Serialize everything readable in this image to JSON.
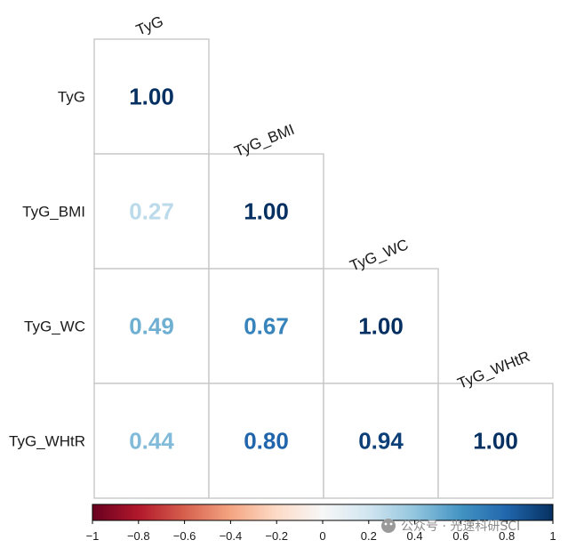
{
  "chart_data": {
    "type": "heatmap",
    "variables": [
      "TyG",
      "TyG_BMI",
      "TyG_WC",
      "TyG_WHtR"
    ],
    "matrix": [
      [
        1.0,
        null,
        null,
        null
      ],
      [
        0.27,
        1.0,
        null,
        null
      ],
      [
        0.49,
        0.67,
        1.0,
        null
      ],
      [
        0.44,
        0.8,
        0.94,
        1.0
      ]
    ],
    "value_labels": [
      [
        "1.00",
        null,
        null,
        null
      ],
      [
        "0.27",
        "1.00",
        null,
        null
      ],
      [
        "0.49",
        "0.67",
        "1.00",
        null
      ],
      [
        "0.44",
        "0.80",
        "0.94",
        "1.00"
      ]
    ],
    "colorbar": {
      "range": [
        -1,
        1
      ],
      "ticks": [
        -1,
        -0.8,
        -0.6,
        -0.4,
        -0.2,
        0,
        0.2,
        0.4,
        0.6,
        0.8,
        1
      ],
      "tick_labels": [
        "−1",
        "−0.8",
        "−0.6",
        "−0.4",
        "−0.2",
        "0",
        "0.2",
        "0.4",
        "0.6",
        "0.8",
        "1"
      ],
      "colors": [
        "#67001f",
        "#b2182b",
        "#d6604d",
        "#f4a582",
        "#fddbc7",
        "#f7f7f7",
        "#d1e5f0",
        "#92c5de",
        "#4393c3",
        "#2166ac",
        "#053061"
      ]
    },
    "layout": "lower-triangle",
    "grid": true
  },
  "watermark": {
    "text": "公众号 · 光速科研SCI"
  }
}
